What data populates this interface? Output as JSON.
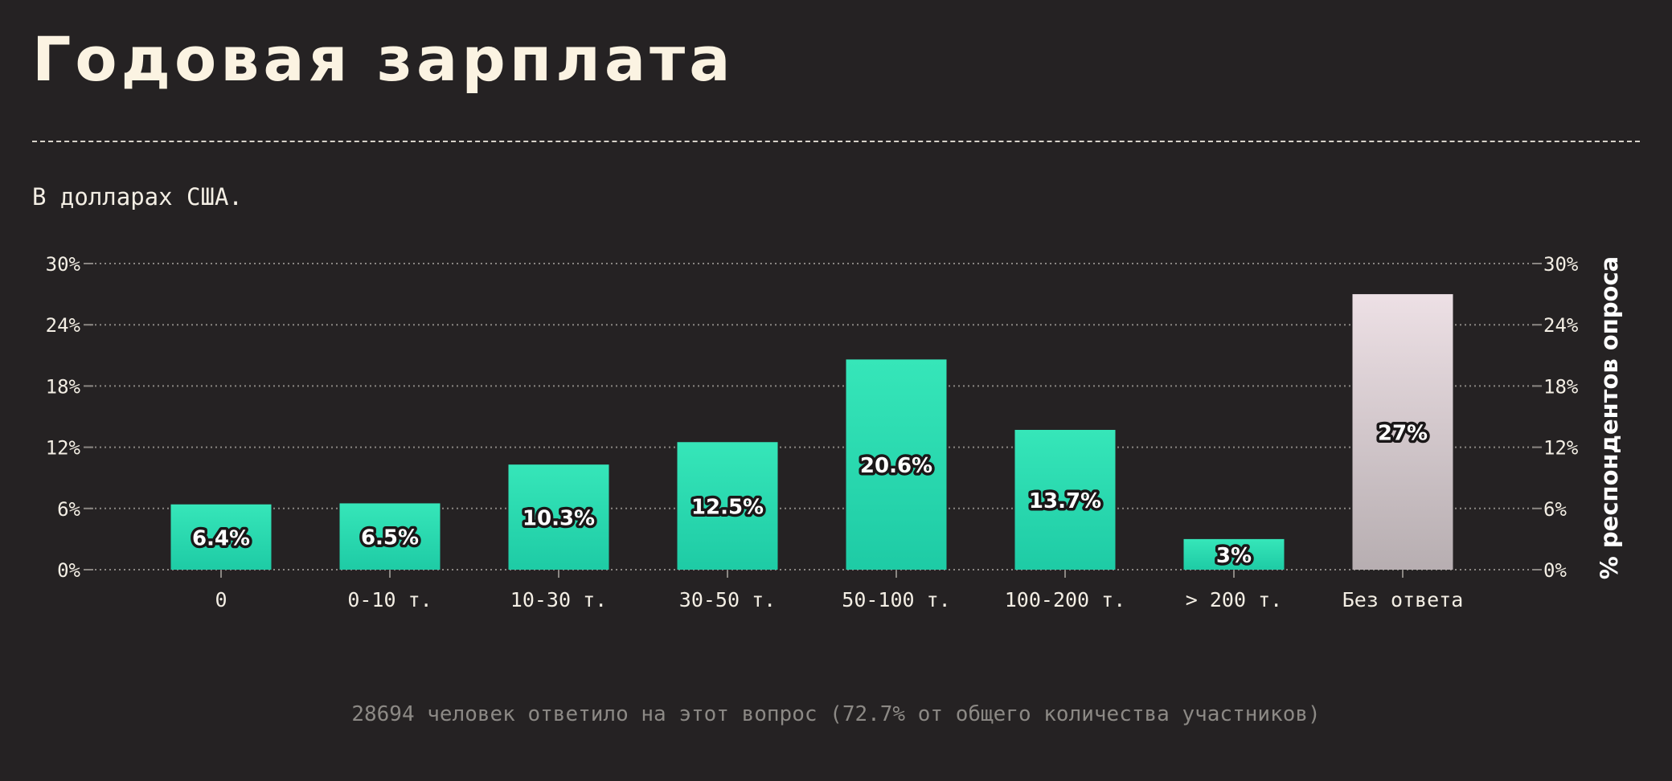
{
  "title": "Годовая зарплата",
  "subtitle": "В долларах США.",
  "footer_note": "28694 человек ответило на этот вопрос (72.7% от общего количества участников)",
  "colors": {
    "background": "#252223",
    "bar_gradient_top": "#36e6b9",
    "bar_gradient_bottom": "#1ecba5",
    "no_answer_gradient_top": "#ede0e5",
    "no_answer_gradient_bottom": "#b7aeb1",
    "grid": "#8a8682",
    "text": "#f3eee4"
  },
  "chart_data": {
    "type": "bar",
    "categories": [
      "0",
      "0-10 т.",
      "10-30 т.",
      "30-50 т.",
      "50-100 т.",
      "100-200 т.",
      "> 200 т.",
      "Без ответа"
    ],
    "values": [
      6.4,
      6.5,
      10.3,
      12.5,
      20.6,
      13.7,
      3,
      27
    ],
    "value_labels": [
      "6.4%",
      "6.5%",
      "10.3%",
      "12.5%",
      "20.6%",
      "13.7%",
      "3%",
      "27%"
    ],
    "highlight_category": "Без ответа",
    "ylim": [
      0,
      30
    ],
    "yticks": [
      0,
      6,
      12,
      18,
      24,
      30
    ],
    "ytick_labels": [
      "0%",
      "6%",
      "12%",
      "18%",
      "24%",
      "30%"
    ],
    "ylabel": "% респондентов опроса",
    "xlabel": "",
    "grid": true,
    "grid_style": "dotted",
    "axis_ticks_on_both_sides": true
  }
}
